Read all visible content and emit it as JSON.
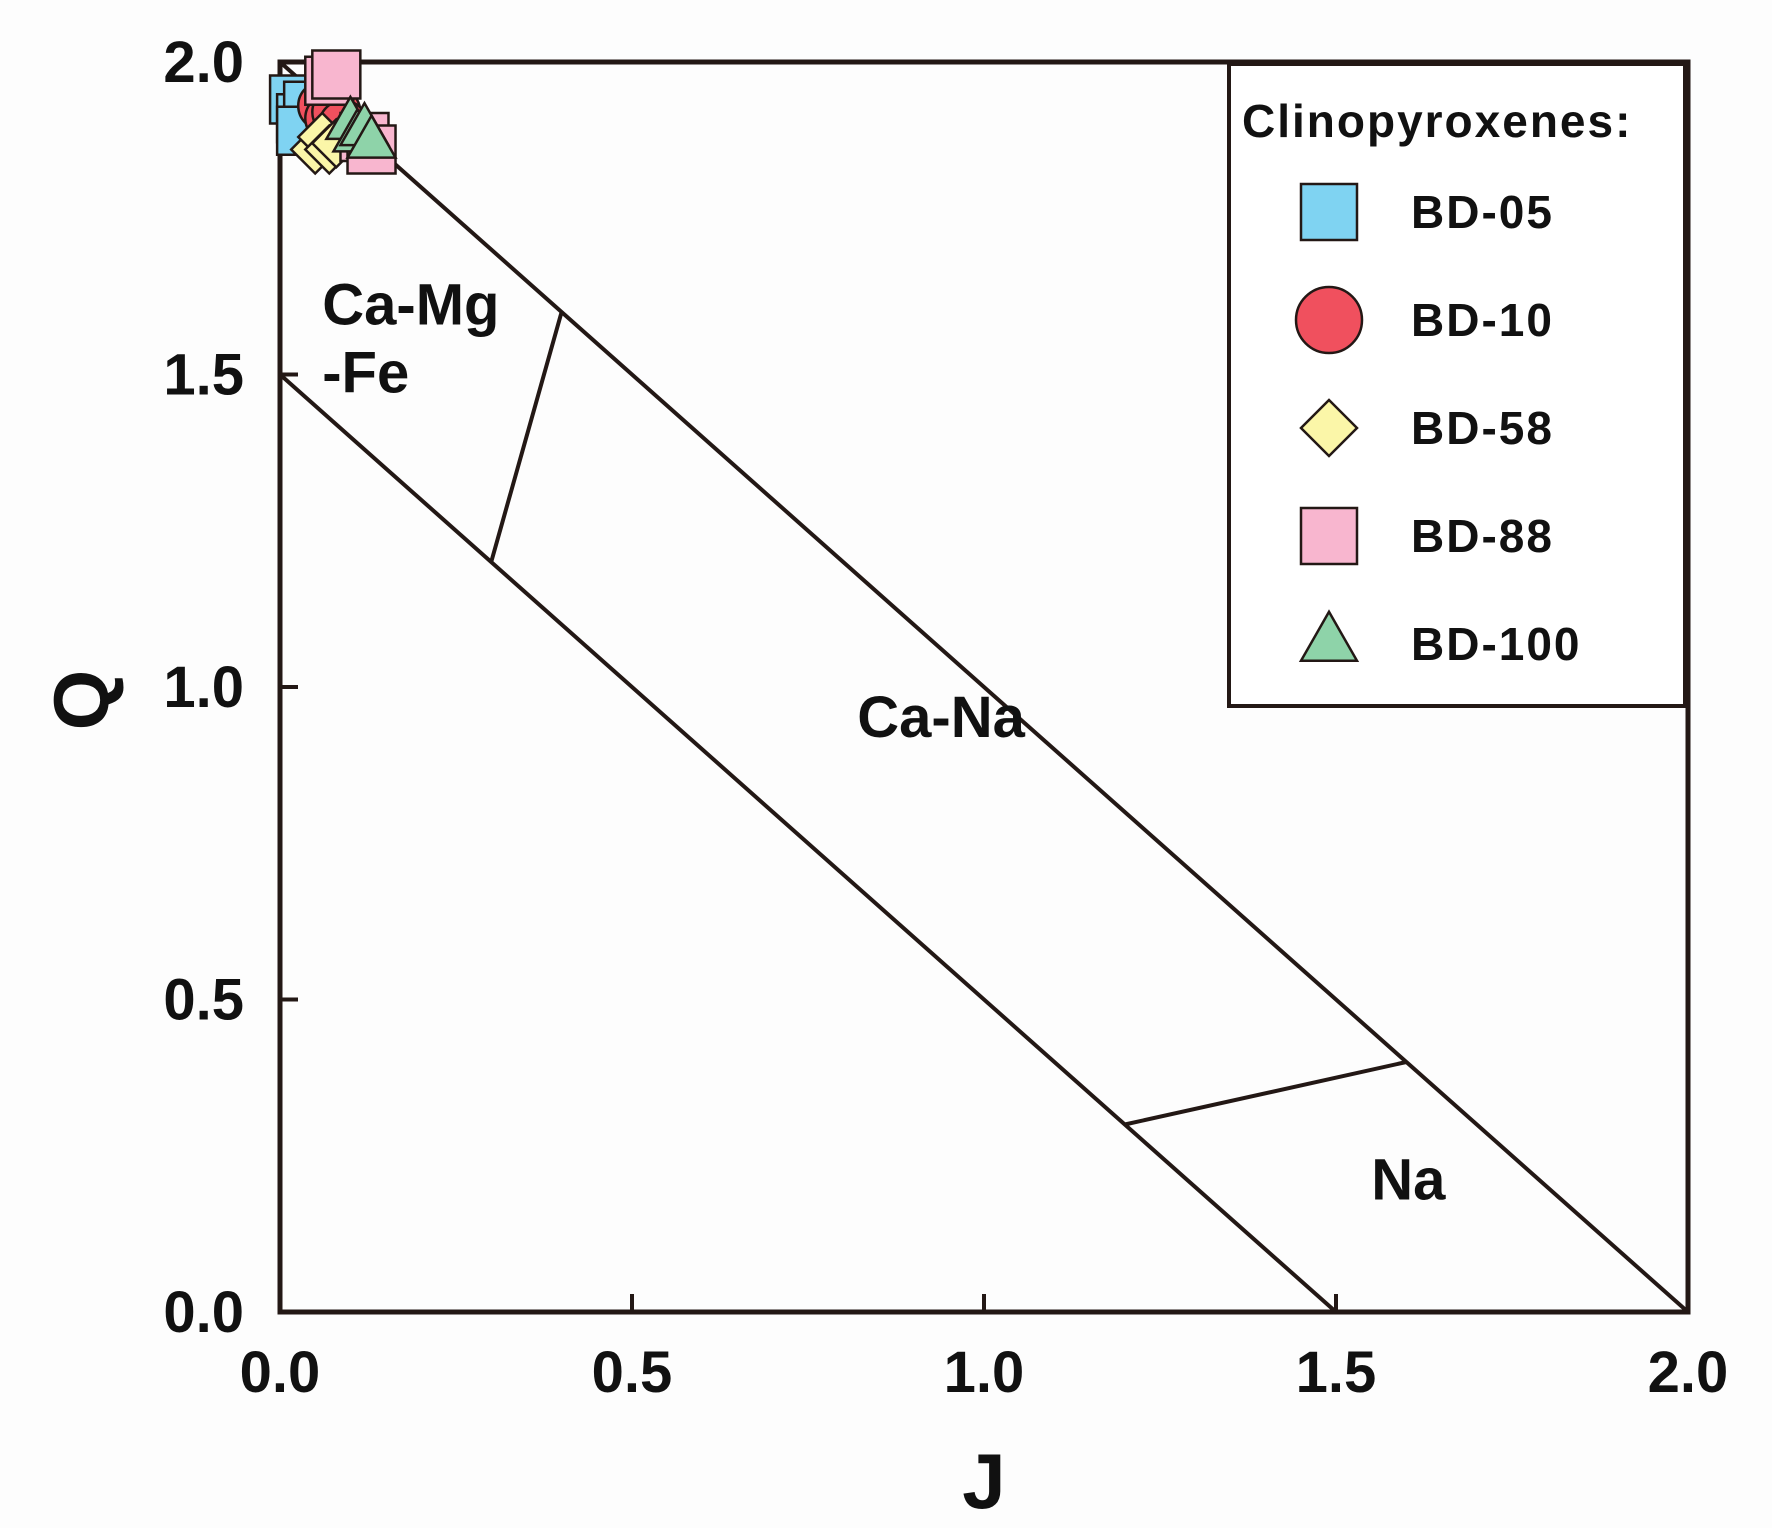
{
  "chart_data": {
    "type": "scatter",
    "title": "",
    "xlabel": "J",
    "ylabel": "Q",
    "xlim": [
      0,
      2.0
    ],
    "ylim": [
      0,
      2.0
    ],
    "xticks": [
      {
        "value": 0.0,
        "label": "0.0"
      },
      {
        "value": 0.5,
        "label": "0.5"
      },
      {
        "value": 1.0,
        "label": "1.0"
      },
      {
        "value": 1.5,
        "label": "1.5"
      },
      {
        "value": 2.0,
        "label": "2.0"
      }
    ],
    "yticks": [
      {
        "value": 0.0,
        "label": "0.0"
      },
      {
        "value": 0.5,
        "label": "0.5"
      },
      {
        "value": 1.0,
        "label": "1.0"
      },
      {
        "value": 1.5,
        "label": "1.5"
      },
      {
        "value": 2.0,
        "label": "2.0"
      }
    ],
    "boundaries": [
      {
        "name": "upper-diagonal",
        "points": [
          [
            0.0,
            2.0
          ],
          [
            2.0,
            0.0
          ]
        ]
      },
      {
        "name": "lower-diagonal",
        "points": [
          [
            0.0,
            1.5
          ],
          [
            1.5,
            0.0
          ]
        ]
      },
      {
        "name": "ca-mg-fe-divider",
        "points": [
          [
            0.3,
            1.2
          ],
          [
            0.4,
            1.6
          ]
        ]
      },
      {
        "name": "na-divider",
        "points": [
          [
            1.2,
            0.3
          ],
          [
            1.6,
            0.4
          ]
        ]
      }
    ],
    "regions": [
      {
        "name": "ca-mg-fe",
        "lines": [
          "Ca-Mg",
          "-Fe"
        ],
        "x": 0.06,
        "y": 1.58
      },
      {
        "name": "ca-na",
        "lines": [
          "Ca-Na"
        ],
        "x": 0.82,
        "y": 0.92
      },
      {
        "name": "na",
        "lines": [
          "Na"
        ],
        "x": 1.55,
        "y": 0.18
      }
    ],
    "legend": {
      "title": "Clinopyroxenes:",
      "position": "top-right"
    },
    "series": [
      {
        "name": "BD-05",
        "marker": "square",
        "color": "#7fd3f2",
        "points": [
          [
            0.02,
            1.94
          ],
          [
            0.03,
            1.91
          ],
          [
            0.04,
            1.93
          ],
          [
            0.03,
            1.89
          ]
        ]
      },
      {
        "name": "BD-10",
        "marker": "circle",
        "color": "#f0505e",
        "points": [
          [
            0.06,
            1.93
          ],
          [
            0.07,
            1.91
          ],
          [
            0.08,
            1.92
          ],
          [
            0.09,
            1.9
          ]
        ]
      },
      {
        "name": "BD-58",
        "marker": "diamond",
        "color": "#fbf6a8",
        "points": [
          [
            0.05,
            1.86
          ],
          [
            0.06,
            1.88
          ],
          [
            0.07,
            1.86
          ],
          [
            0.08,
            1.87
          ]
        ]
      },
      {
        "name": "BD-88",
        "marker": "square",
        "color": "#f8b6cf",
        "points": [
          [
            0.07,
            1.97
          ],
          [
            0.08,
            1.98
          ],
          [
            0.12,
            1.88
          ],
          [
            0.13,
            1.86
          ]
        ]
      },
      {
        "name": "BD-100",
        "marker": "triangle",
        "color": "#8ed3a9",
        "points": [
          [
            0.1,
            1.9
          ],
          [
            0.11,
            1.88
          ],
          [
            0.12,
            1.89
          ],
          [
            0.13,
            1.87
          ]
        ]
      }
    ]
  }
}
